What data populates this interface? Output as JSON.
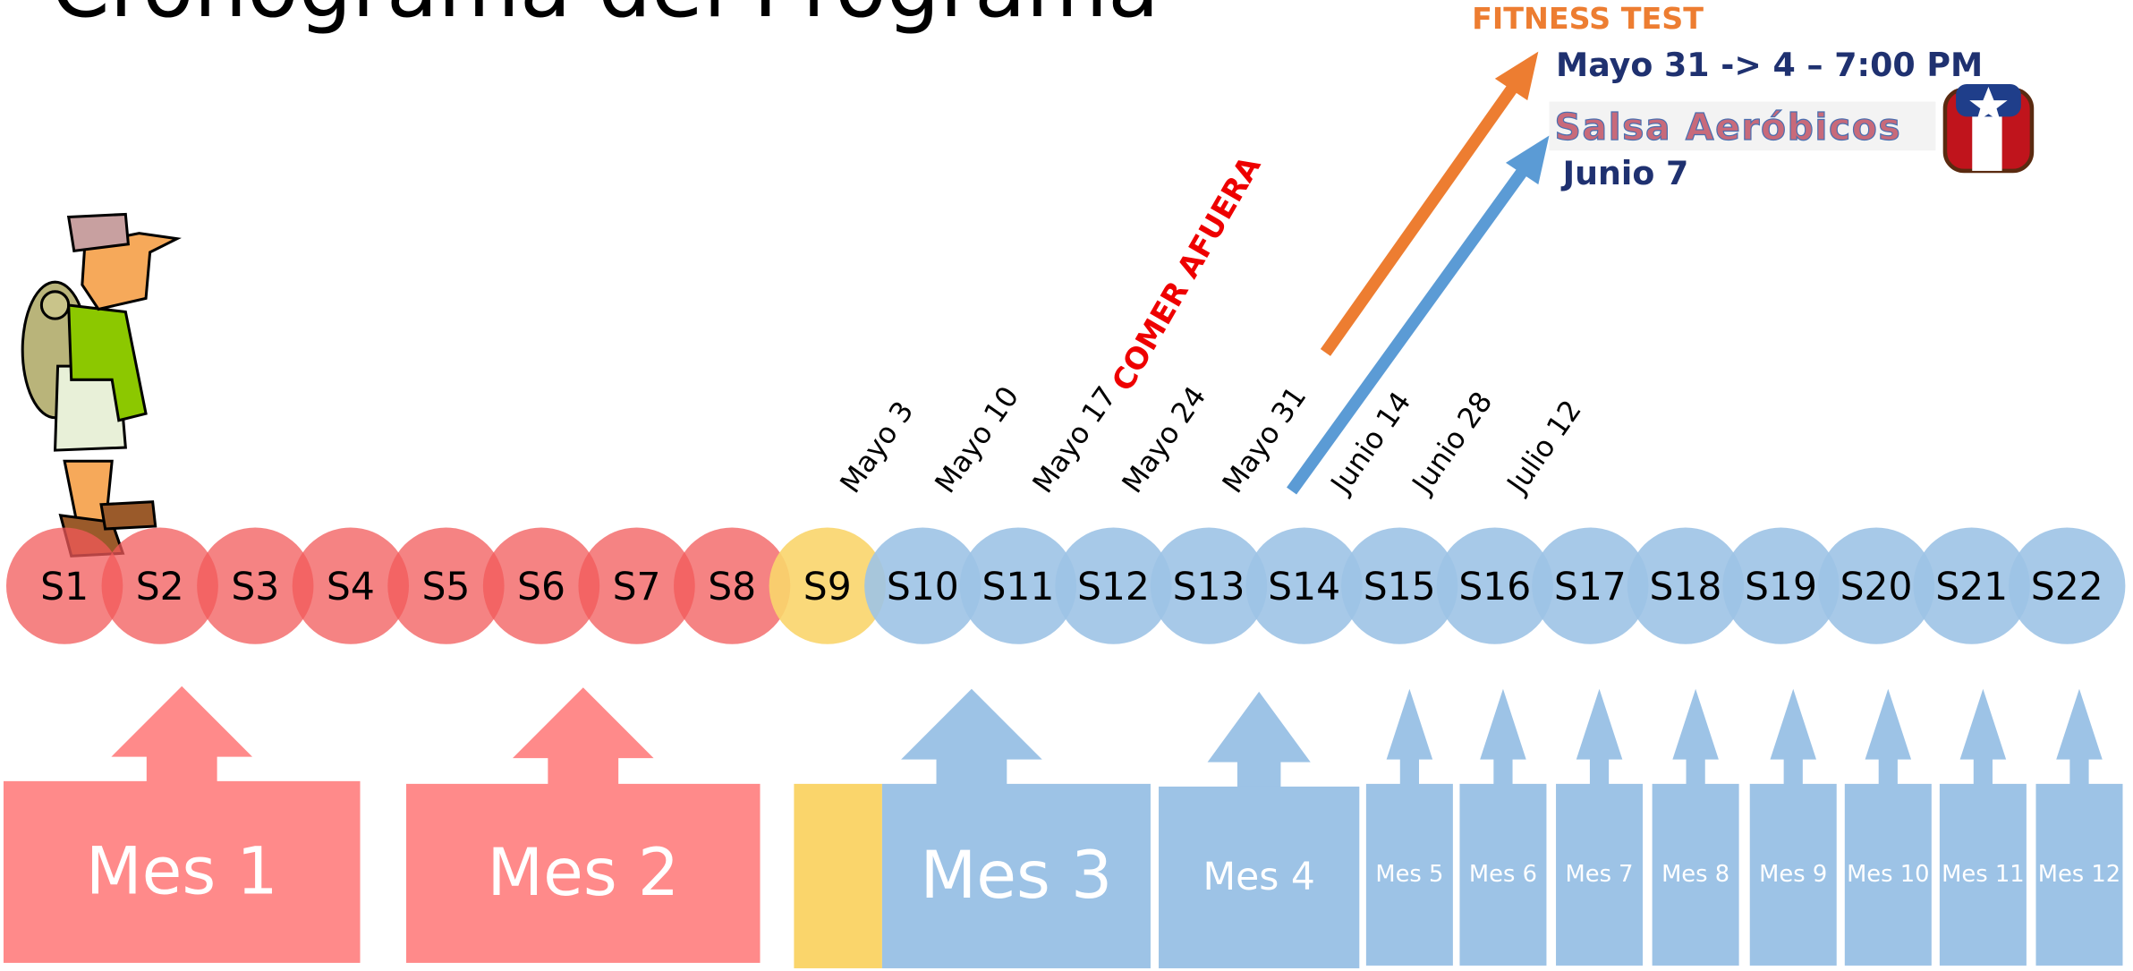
{
  "title": "Cronograma del Programa",
  "fitness_test": "FITNESS TEST",
  "fitness_date": "Mayo 31 -> 4 – 7:00 PM",
  "salsa_logo": "Salsa Aeróbicos",
  "salsa_date": "Junio 7",
  "comer_afuera": "COMER AFUERA",
  "dates": [
    "Mayo 3",
    "Mayo 10",
    "Mayo 17",
    "Mayo 24",
    "Mayo 31",
    "Junio 14",
    "Junio 28",
    "Julio 12"
  ],
  "sessions": [
    "S1",
    "S2",
    "S3",
    "S4",
    "S5",
    "S6",
    "S7",
    "S8",
    "S9",
    "S10",
    "S11",
    "S12",
    "S13",
    "S14",
    "S15",
    "S16",
    "S17",
    "S18",
    "S19",
    "S20",
    "S21",
    "S22"
  ],
  "months": [
    "Mes 1",
    "Mes 2",
    "Mes 3",
    "Mes 4",
    "Mes 5",
    "Mes 6",
    "Mes 7",
    "Mes 8",
    "Mes 9",
    "Mes 10",
    "Mes 11",
    "Mes 12"
  ]
}
